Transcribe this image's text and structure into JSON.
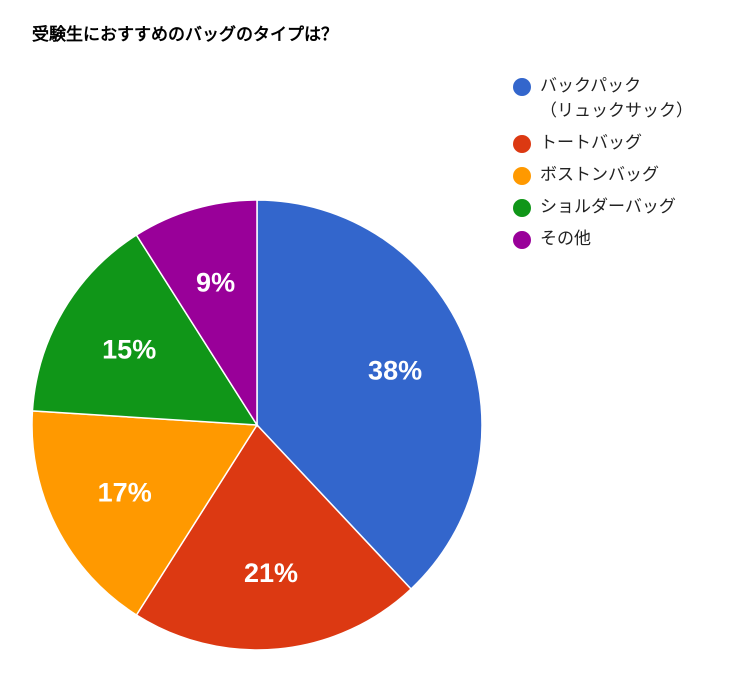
{
  "chart_data": {
    "type": "pie",
    "title": "受験生におすすめのバッグのタイプは？",
    "legend_position": "right",
    "slices": [
      {
        "label": "バックパック\n（リュックサック）",
        "value": 38,
        "value_label": "38%",
        "color": "#3366CC"
      },
      {
        "label": "トートバッグ",
        "value": 21,
        "value_label": "21%",
        "color": "#DC3912"
      },
      {
        "label": "ボストンバッグ",
        "value": 17,
        "value_label": "17%",
        "color": "#FF9900"
      },
      {
        "label": "ショルダーバッグ",
        "value": 15,
        "value_label": "15%",
        "color": "#109618"
      },
      {
        "label": "その他",
        "value": 9,
        "value_label": "9%",
        "color": "#990099"
      }
    ]
  }
}
